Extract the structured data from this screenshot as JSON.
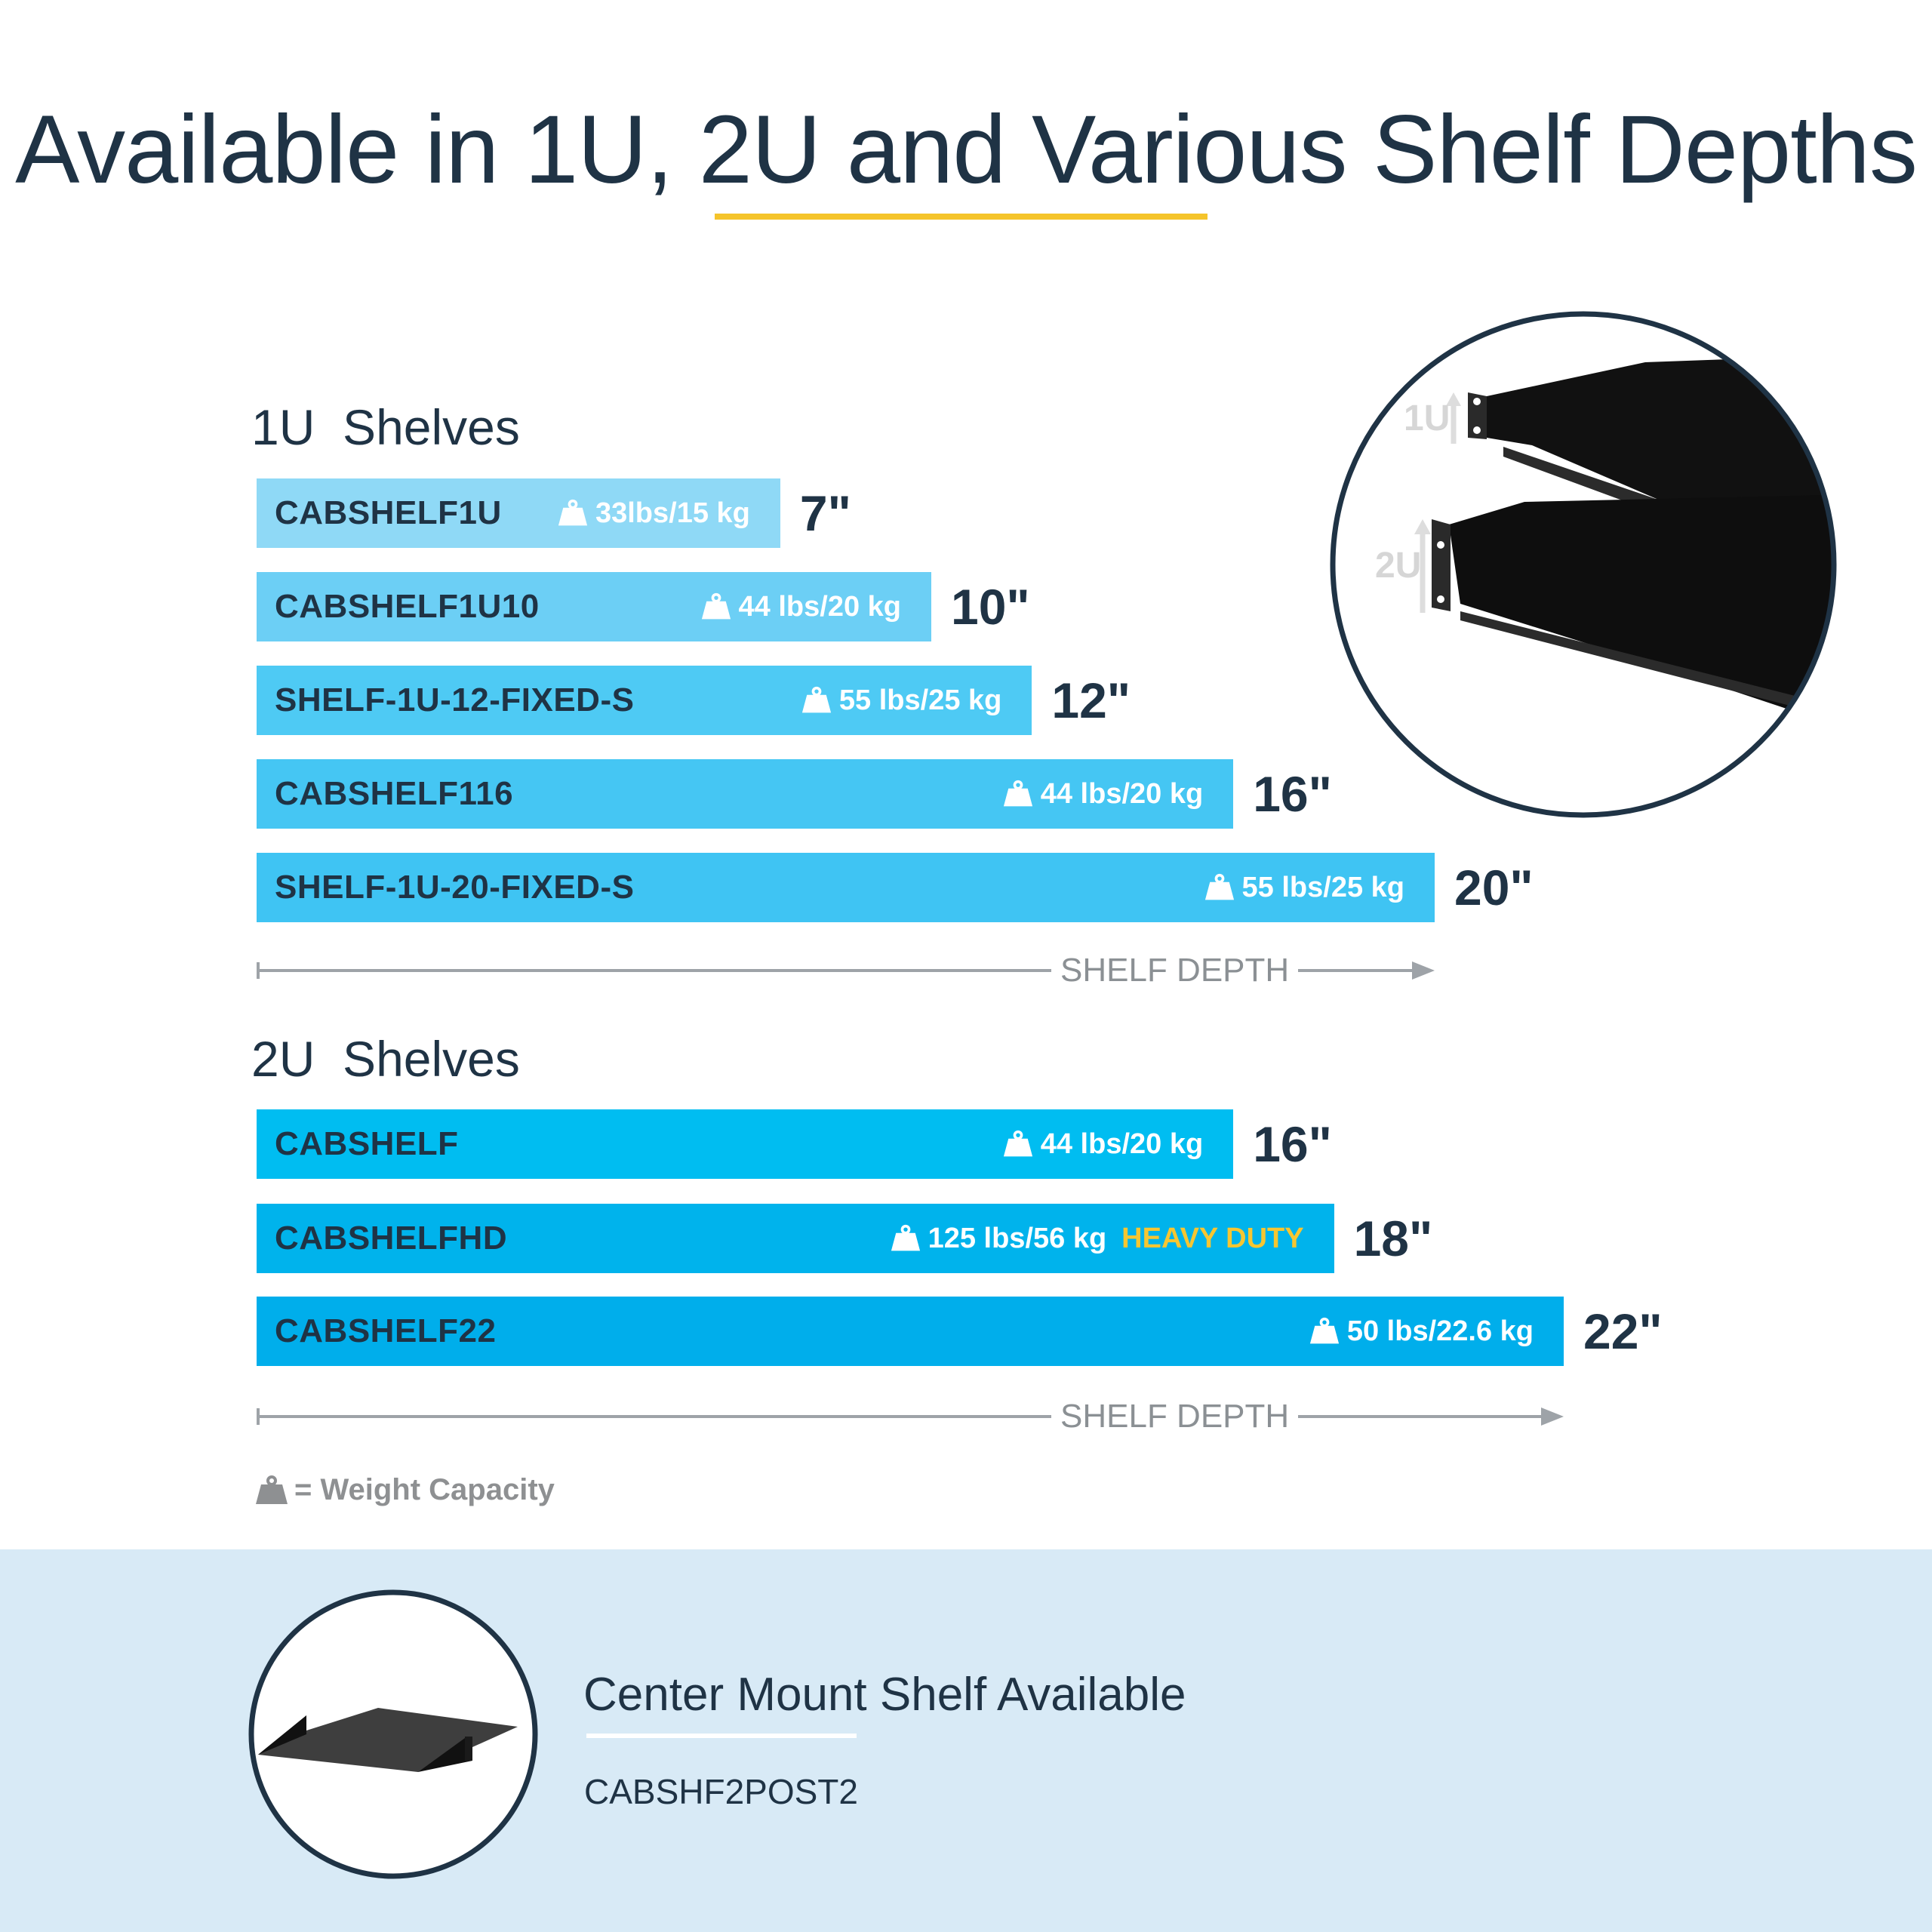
{
  "title": "Available in 1U, 2U and Various Shelf Depths",
  "colors": {
    "accent_yellow": "#f5c42b",
    "dark_text": "#1f3345",
    "panel_bg": "#d8eaf6"
  },
  "sections": [
    {
      "heading": "1U  Shelves",
      "axis_label": "SHELF DEPTH",
      "shelves": [
        {
          "sku": "CABSHELF1U",
          "capacity": "33lbs/15 kg",
          "depth": "7\"",
          "depth_in": 7,
          "color": "#8fd9f6"
        },
        {
          "sku": "CABSHELF1U10",
          "capacity": "44 lbs/20 kg",
          "depth": "10\"",
          "depth_in": 10,
          "color": "#6ccff5"
        },
        {
          "sku": "SHELF-1U-12-FIXED-S",
          "capacity": "55 lbs/25 kg",
          "depth": "12\"",
          "depth_in": 12,
          "color": "#4ecaf4"
        },
        {
          "sku": "CABSHELF116",
          "capacity": "44 lbs/20 kg",
          "depth": "16\"",
          "depth_in": 16,
          "color": "#45c6f3"
        },
        {
          "sku": "SHELF-1U-20-FIXED-S",
          "capacity": "55 lbs/25 kg",
          "depth": "20\"",
          "depth_in": 20,
          "color": "#3fc4f3"
        }
      ]
    },
    {
      "heading": "2U  Shelves",
      "axis_label": "SHELF DEPTH",
      "shelves": [
        {
          "sku": "CABSHELF",
          "capacity": "44 lbs/20 kg",
          "depth": "16\"",
          "depth_in": 16,
          "color": "#00bdf1"
        },
        {
          "sku": "CABSHELFHD",
          "capacity": "125 lbs/56 kg",
          "badge": "HEAVY DUTY",
          "depth": "18\"",
          "depth_in": 18,
          "color": "#00b3ec"
        },
        {
          "sku": "CABSHELF22",
          "capacity": "50 lbs/22.6 kg",
          "depth": "22\"",
          "depth_in": 22,
          "color": "#00aeeb"
        }
      ]
    }
  ],
  "photo_labels": {
    "u1": "1U",
    "u2": "2U"
  },
  "legend": {
    "icon": "weight-icon",
    "text": "= Weight Capacity"
  },
  "center_mount": {
    "title": "Center Mount Shelf Available",
    "sku": "CABSHF2POST2"
  }
}
